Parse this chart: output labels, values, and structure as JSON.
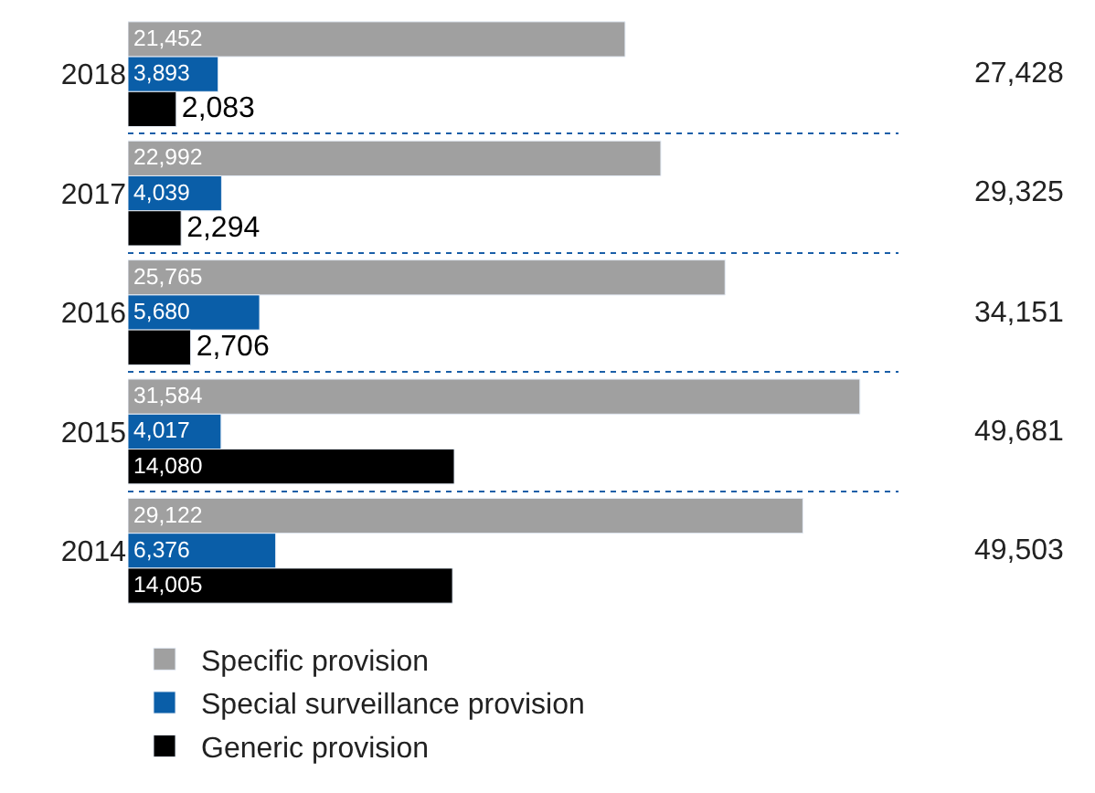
{
  "chart_data": {
    "type": "bar",
    "orientation": "horizontal",
    "categories": [
      "2018",
      "2017",
      "2016",
      "2015",
      "2014"
    ],
    "series": [
      {
        "name": "Specific provision",
        "color": "#a0a0a0",
        "values": [
          21452,
          22992,
          25765,
          31584,
          29122
        ],
        "value_labels": [
          "21,452",
          "22,992",
          "25,765",
          "31,584",
          "29,122"
        ]
      },
      {
        "name": "Special surveillance provision",
        "color": "#0a5ea8",
        "values": [
          3893,
          4039,
          5680,
          4017,
          6376
        ],
        "value_labels": [
          "3,893",
          "4,039",
          "5,680",
          "4,017",
          "6,376"
        ]
      },
      {
        "name": "Generic provision",
        "color": "#000000",
        "values": [
          2083,
          2294,
          2706,
          14080,
          14005
        ],
        "value_labels": [
          "2,083",
          "2,294",
          "2,706",
          "14,080",
          "14,005"
        ]
      }
    ],
    "annotations": [
      "27,428",
      "29,325",
      "34,151",
      "49,681",
      "49,503"
    ],
    "grid": "y",
    "legend": "bottom left"
  }
}
